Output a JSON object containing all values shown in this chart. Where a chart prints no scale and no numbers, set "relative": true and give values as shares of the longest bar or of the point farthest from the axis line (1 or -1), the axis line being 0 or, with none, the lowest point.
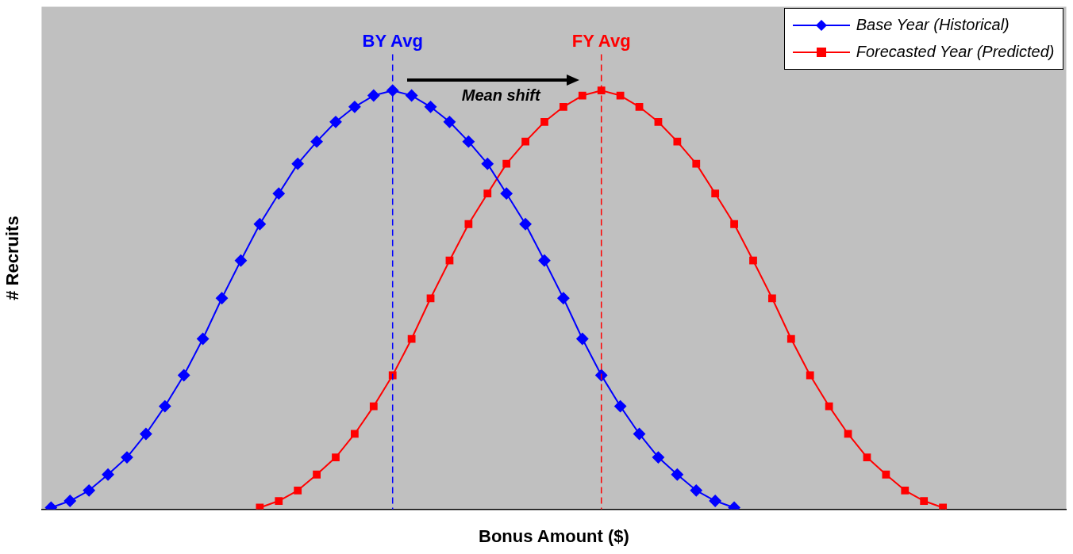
{
  "chart_data": {
    "type": "line",
    "relative": true,
    "xlabel": "Bonus Amount ($)",
    "ylabel": "# Recruits",
    "categories": [
      null,
      null,
      null,
      null,
      null,
      null,
      null,
      null,
      null,
      null,
      null,
      null,
      null,
      null,
      null,
      null,
      null,
      null,
      null,
      null,
      null,
      null,
      null,
      null,
      null,
      null,
      null,
      null,
      null,
      null,
      null,
      null,
      null,
      null,
      null,
      null,
      null,
      null,
      null,
      null,
      null,
      null,
      null,
      null,
      null,
      null,
      null,
      null,
      null,
      null,
      null,
      null,
      null,
      null
    ],
    "series": [
      {
        "name": "Base Year (Historical)",
        "color": "#0000ff",
        "marker": "diamond",
        "values": [
          0.004,
          0.02,
          0.045,
          0.083,
          0.124,
          0.18,
          0.246,
          0.32,
          0.407,
          0.504,
          0.594,
          0.681,
          0.754,
          0.825,
          0.878,
          0.925,
          0.961,
          0.988,
          1,
          0.988,
          0.961,
          0.925,
          0.878,
          0.825,
          0.754,
          0.681,
          0.594,
          0.504,
          0.407,
          0.32,
          0.246,
          0.18,
          0.124,
          0.083,
          0.045,
          0.02,
          0.004,
          null,
          null,
          null,
          null,
          null,
          null,
          null,
          null,
          null,
          null,
          null,
          null,
          null,
          null,
          null,
          null,
          null
        ]
      },
      {
        "name": "Forecasted Year (Predicted)",
        "color": "#ff0000",
        "marker": "square",
        "values": [
          null,
          null,
          null,
          null,
          null,
          null,
          null,
          null,
          null,
          null,
          null,
          0.004,
          0.02,
          0.045,
          0.083,
          0.124,
          0.18,
          0.246,
          0.32,
          0.407,
          0.504,
          0.594,
          0.681,
          0.754,
          0.825,
          0.878,
          0.925,
          0.961,
          0.988,
          1,
          0.988,
          0.961,
          0.925,
          0.878,
          0.825,
          0.754,
          0.681,
          0.594,
          0.504,
          0.407,
          0.32,
          0.246,
          0.18,
          0.124,
          0.083,
          0.045,
          0.02,
          0.004,
          null,
          null,
          null,
          null,
          null,
          null
        ]
      }
    ],
    "annotations": [
      "BY Avg",
      "FY Avg",
      "Mean shift"
    ],
    "legend": "top right",
    "grid": false,
    "tick_labels": false,
    "line_style": "solid"
  }
}
